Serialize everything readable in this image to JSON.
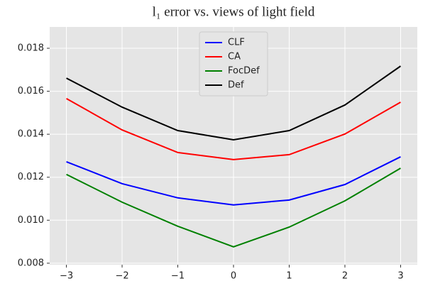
{
  "chart_data": {
    "type": "line",
    "title": "l₁ error vs. views of light field",
    "x": [
      -3,
      -2,
      -1,
      0,
      1,
      2,
      3
    ],
    "series": [
      {
        "name": "CLF",
        "color": "#0000ff",
        "values": [
          0.01272,
          0.0117,
          0.01104,
          0.01071,
          0.01094,
          0.01166,
          0.01295
        ]
      },
      {
        "name": "CA",
        "color": "#ff0000",
        "values": [
          0.01566,
          0.0142,
          0.01315,
          0.01282,
          0.01305,
          0.01401,
          0.01549
        ]
      },
      {
        "name": "FocDef",
        "color": "#008000",
        "values": [
          0.01213,
          0.01084,
          0.00972,
          0.00876,
          0.00968,
          0.0109,
          0.01242
        ]
      },
      {
        "name": "Def",
        "color": "#000000",
        "values": [
          0.01661,
          0.01526,
          0.01417,
          0.01374,
          0.01417,
          0.01536,
          0.01717
        ]
      }
    ],
    "xlim": [
      -3.3,
      3.3
    ],
    "xticks": [
      {
        "value": -3,
        "label": "−3"
      },
      {
        "value": -2,
        "label": "−2"
      },
      {
        "value": -1,
        "label": "−1"
      },
      0,
      1,
      2,
      3
    ],
    "ylim": [
      0.00793,
      0.01899
    ],
    "yticks": [
      0.008,
      {
        "value": 0.01,
        "label": "0.010"
      },
      0.012,
      0.014,
      0.016,
      0.018
    ],
    "grid": true,
    "legend": "upper center"
  }
}
